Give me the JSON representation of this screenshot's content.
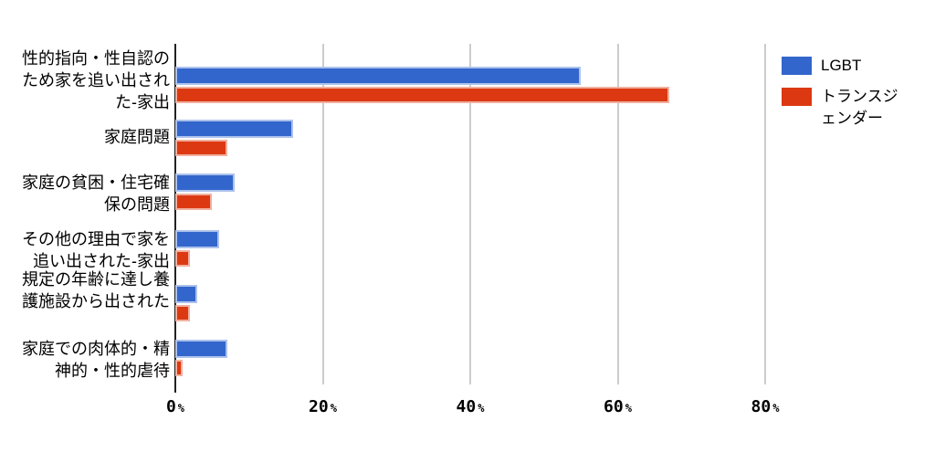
{
  "chart_data": {
    "type": "bar",
    "orientation": "horizontal",
    "title": "",
    "xlabel": "",
    "ylabel": "",
    "grid": true,
    "legend_position": "right-top",
    "categories": [
      "性的指向・性自認のため家を追い出された-家出",
      "家庭問題",
      "家庭の貧困・住宅確保の問題",
      "その他の理由で家を追い出された-家出",
      "規定の年齢に達し養護施設から出された",
      "家庭での肉体的・精神的・性的虐待"
    ],
    "category_label_lines": [
      [
        "性的指向・性自認の",
        "ため家を追い出され",
        "た-家出"
      ],
      [
        "家庭問題"
      ],
      [
        "家庭の貧困・住宅確",
        "保の問題"
      ],
      [
        "その他の理由で家を",
        "追い出された-家出"
      ],
      [
        "規定の年齢に達し養",
        "護施設から出された"
      ],
      [
        "家庭での肉体的・精",
        "神的・性的虐待"
      ]
    ],
    "series": [
      {
        "name": "LGBT",
        "color": "#3366cc",
        "border_color": "#adc2eb",
        "values": [
          55,
          16,
          8,
          6,
          3,
          7
        ]
      },
      {
        "name": "トランスジェンダー",
        "color": "#dc3912",
        "border_color": "#f1b0a0",
        "values": [
          67,
          7,
          5,
          2,
          2,
          1
        ]
      }
    ],
    "x_axis": {
      "min": 0,
      "max": 80,
      "unit": "%",
      "ticks": [
        {
          "value": 0,
          "label": "0"
        },
        {
          "value": 20,
          "label": "20"
        },
        {
          "value": 40,
          "label": "40"
        },
        {
          "value": 60,
          "label": "60"
        },
        {
          "value": 80,
          "label": "80"
        }
      ]
    }
  },
  "colors": {
    "background": "#ffffff",
    "gridline": "#cccccc",
    "axis_line": "#212121",
    "text": "#000000"
  }
}
